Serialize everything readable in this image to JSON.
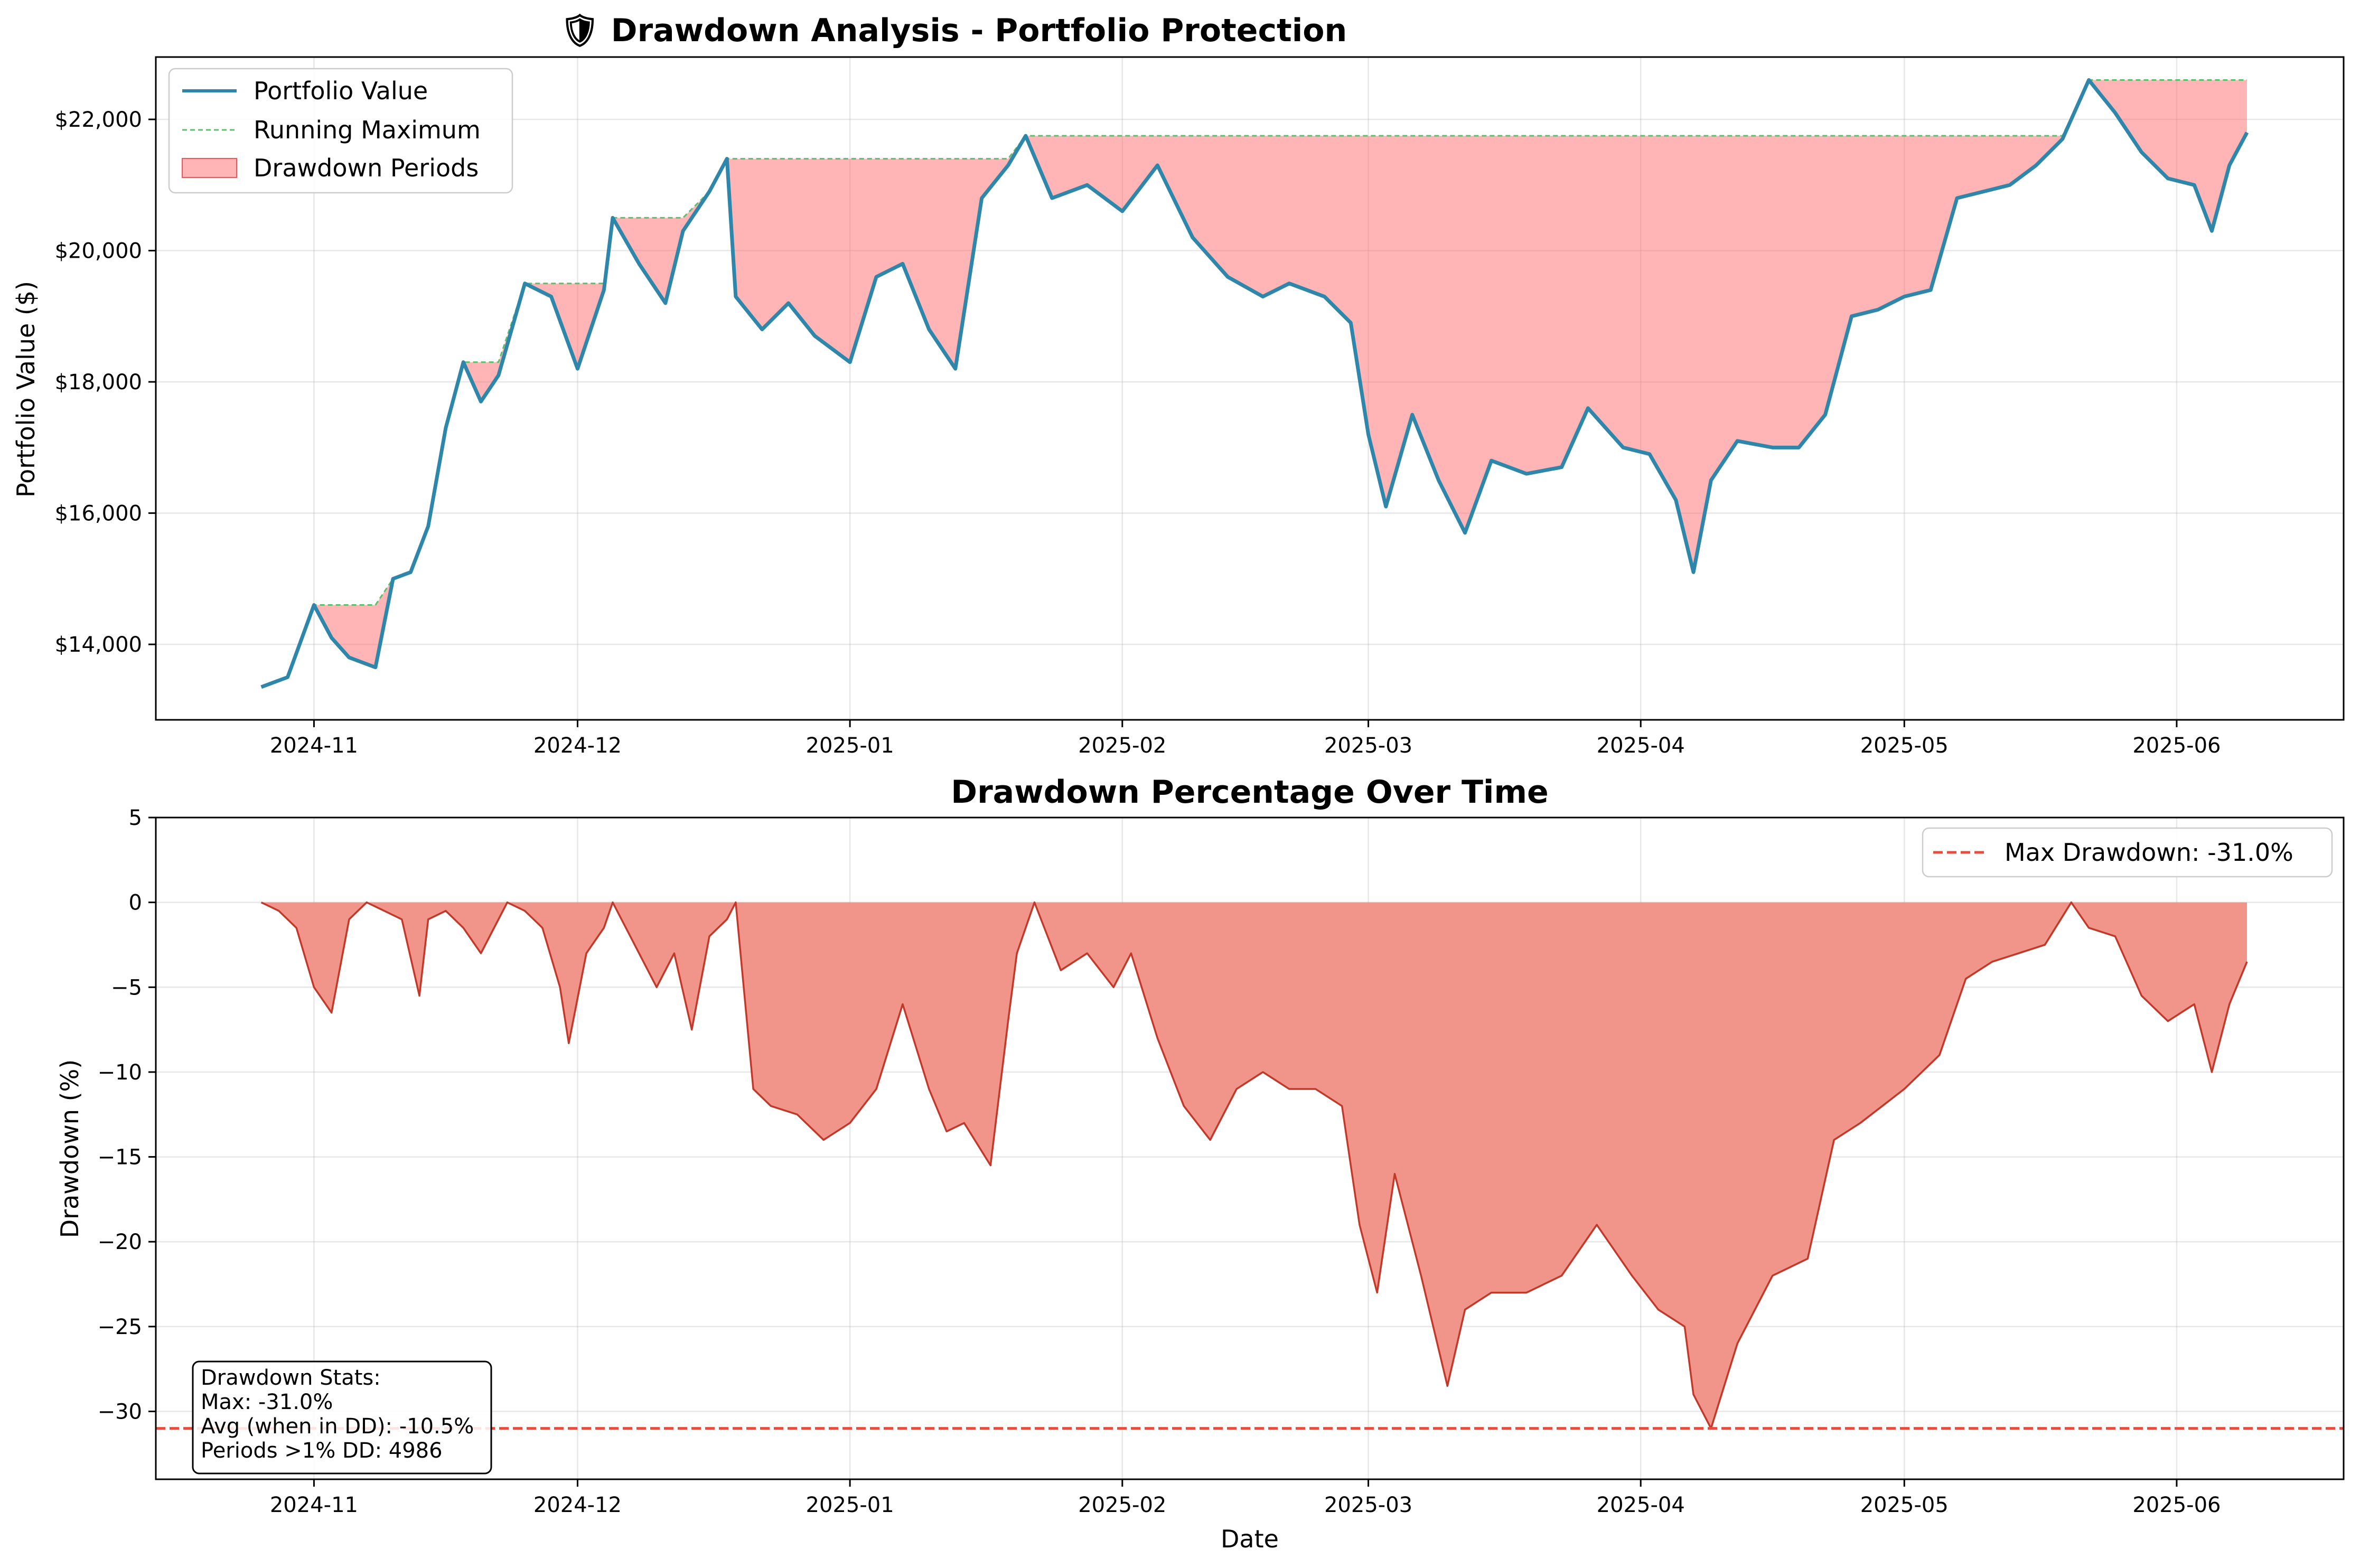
{
  "chart_data": [
    {
      "type": "line",
      "title": "🛡 Drawdown Analysis - Portfolio Protection",
      "xlabel": "",
      "ylabel": "Portfolio Value ($)",
      "x_ticks": [
        "2024-11",
        "2024-12",
        "2025-01",
        "2025-02",
        "2025-03",
        "2025-04",
        "2025-05",
        "2025-06"
      ],
      "y_ticks": [
        "$14,000",
        "$16,000",
        "$18,000",
        "$20,000",
        "$22,000"
      ],
      "y_tick_values": [
        14000,
        16000,
        18000,
        20000,
        22000
      ],
      "xlim": [
        "2024-10-14",
        "2025-06-20"
      ],
      "ylim": [
        12850,
        22950
      ],
      "grid": true,
      "legend_position": "top-left",
      "legend": [
        "Portfolio Value",
        "Running Maximum",
        "Drawdown Periods"
      ],
      "x": [
        "2024-10-26",
        "2024-10-29",
        "2024-11-01",
        "2024-11-03",
        "2024-11-05",
        "2024-11-08",
        "2024-11-10",
        "2024-11-12",
        "2024-11-14",
        "2024-11-16",
        "2024-11-18",
        "2024-11-20",
        "2024-11-22",
        "2024-11-25",
        "2024-11-28",
        "2024-12-01",
        "2024-12-04",
        "2024-12-05",
        "2024-12-08",
        "2024-12-11",
        "2024-12-13",
        "2024-12-16",
        "2024-12-18",
        "2024-12-19",
        "2024-12-22",
        "2024-12-25",
        "2024-12-28",
        "2025-01-01",
        "2025-01-04",
        "2025-01-07",
        "2025-01-10",
        "2025-01-13",
        "2025-01-16",
        "2025-01-19",
        "2025-01-21",
        "2025-01-24",
        "2025-01-28",
        "2025-02-01",
        "2025-02-05",
        "2025-02-09",
        "2025-02-13",
        "2025-02-17",
        "2025-02-20",
        "2025-02-24",
        "2025-02-27",
        "2025-03-01",
        "2025-03-03",
        "2025-03-06",
        "2025-03-09",
        "2025-03-12",
        "2025-03-15",
        "2025-03-19",
        "2025-03-23",
        "2025-03-26",
        "2025-03-30",
        "2025-04-02",
        "2025-04-05",
        "2025-04-07",
        "2025-04-09",
        "2025-04-12",
        "2025-04-16",
        "2025-04-19",
        "2025-04-22",
        "2025-04-25",
        "2025-04-28",
        "2025-05-01",
        "2025-05-04",
        "2025-05-07",
        "2025-05-10",
        "2025-05-13",
        "2025-05-16",
        "2025-05-19",
        "2025-05-22",
        "2025-05-25",
        "2025-05-28",
        "2025-05-31",
        "2025-06-03",
        "2025-06-05",
        "2025-06-07",
        "2025-06-09"
      ],
      "series": [
        {
          "name": "Portfolio Value",
          "color": "#2e86ab",
          "values": [
            13350,
            13500,
            14600,
            14100,
            13800,
            13650,
            15000,
            15100,
            15800,
            17300,
            18300,
            17700,
            18100,
            19500,
            19300,
            18200,
            19400,
            20500,
            19800,
            19200,
            20300,
            20900,
            21400,
            19300,
            18800,
            19200,
            18700,
            18300,
            19600,
            19800,
            18800,
            18200,
            20800,
            21300,
            21750,
            20800,
            21000,
            20600,
            21300,
            20200,
            19600,
            19300,
            19500,
            19300,
            18900,
            17200,
            16100,
            17500,
            16500,
            15700,
            16800,
            16600,
            16700,
            17600,
            17000,
            16900,
            16200,
            15100,
            16500,
            17100,
            17000,
            17000,
            17500,
            19000,
            19100,
            19300,
            19400,
            20800,
            20900,
            21000,
            21300,
            21700,
            22600,
            22100,
            21500,
            21100,
            21000,
            20300,
            21300,
            21800
          ]
        },
        {
          "name": "Running Maximum",
          "color": "#5cbf6f",
          "values": [
            13350,
            13500,
            14600,
            14600,
            14600,
            14600,
            15000,
            15100,
            15800,
            17300,
            18300,
            18300,
            18300,
            19500,
            19500,
            19500,
            19500,
            20500,
            20500,
            20500,
            20500,
            20900,
            21400,
            21400,
            21400,
            21400,
            21400,
            21400,
            21400,
            21400,
            21400,
            21400,
            21400,
            21400,
            21750,
            21750,
            21750,
            21750,
            21750,
            21750,
            21750,
            21750,
            21750,
            21750,
            21750,
            21750,
            21750,
            21750,
            21750,
            21750,
            21750,
            21750,
            21750,
            21750,
            21750,
            21750,
            21750,
            21750,
            21750,
            21750,
            21750,
            21750,
            21750,
            21750,
            21750,
            21750,
            21750,
            21750,
            21750,
            21750,
            21750,
            21750,
            22600,
            22600,
            22600,
            22600,
            22600,
            22600,
            22600,
            22600
          ]
        }
      ]
    },
    {
      "type": "area",
      "title": "Drawdown Percentage Over Time",
      "xlabel": "Date",
      "ylabel": "Drawdown (%)",
      "x_ticks": [
        "2024-11",
        "2024-12",
        "2025-01",
        "2025-02",
        "2025-03",
        "2025-04",
        "2025-05",
        "2025-06"
      ],
      "y_ticks": [
        "5",
        "0",
        "−5",
        "−10",
        "−15",
        "−20",
        "−25",
        "−30"
      ],
      "y_tick_values": [
        5,
        0,
        -5,
        -10,
        -15,
        -20,
        -25,
        -30
      ],
      "xlim": [
        "2024-10-14",
        "2025-06-20"
      ],
      "ylim": [
        -34,
        5
      ],
      "grid": true,
      "legend_position": "top-right",
      "legend": [
        "Max Drawdown: -31.0%"
      ],
      "x": [
        "2024-10-26",
        "2024-10-28",
        "2024-10-30",
        "2024-11-01",
        "2024-11-03",
        "2024-11-05",
        "2024-11-07",
        "2024-11-09",
        "2024-11-11",
        "2024-11-13",
        "2024-11-14",
        "2024-11-16",
        "2024-11-18",
        "2024-11-20",
        "2024-11-23",
        "2024-11-25",
        "2024-11-27",
        "2024-11-29",
        "2024-11-30",
        "2024-12-02",
        "2024-12-04",
        "2024-12-05",
        "2024-12-08",
        "2024-12-10",
        "2024-12-12",
        "2024-12-14",
        "2024-12-16",
        "2024-12-18",
        "2024-12-19",
        "2024-12-21",
        "2024-12-23",
        "2024-12-26",
        "2024-12-29",
        "2025-01-01",
        "2025-01-04",
        "2025-01-07",
        "2025-01-10",
        "2025-01-12",
        "2025-01-14",
        "2025-01-17",
        "2025-01-19",
        "2025-01-20",
        "2025-01-22",
        "2025-01-25",
        "2025-01-28",
        "2025-01-31",
        "2025-02-02",
        "2025-02-05",
        "2025-02-08",
        "2025-02-11",
        "2025-02-14",
        "2025-02-17",
        "2025-02-20",
        "2025-02-23",
        "2025-02-26",
        "2025-02-28",
        "2025-03-02",
        "2025-03-04",
        "2025-03-07",
        "2025-03-10",
        "2025-03-12",
        "2025-03-15",
        "2025-03-19",
        "2025-03-23",
        "2025-03-27",
        "2025-03-31",
        "2025-04-03",
        "2025-04-06",
        "2025-04-07",
        "2025-04-09",
        "2025-04-12",
        "2025-04-16",
        "2025-04-20",
        "2025-04-23",
        "2025-04-26",
        "2025-05-01",
        "2025-05-05",
        "2025-05-08",
        "2025-05-11",
        "2025-05-14",
        "2025-05-17",
        "2025-05-20",
        "2025-05-22",
        "2025-05-25",
        "2025-05-28",
        "2025-05-31",
        "2025-06-03",
        "2025-06-05",
        "2025-06-07",
        "2025-06-09"
      ],
      "series": [
        {
          "name": "Drawdown",
          "color": "#c0392b",
          "fill": "#f1948a",
          "values": [
            0,
            -0.5,
            -1.5,
            -5,
            -6.5,
            -1,
            0,
            -0.5,
            -1,
            -5.5,
            -1,
            -0.5,
            -1.5,
            -3,
            0,
            -0.5,
            -1.5,
            -5,
            -8.3,
            -3,
            -1.5,
            0,
            -3,
            -5,
            -3,
            -7.5,
            -2,
            -1,
            0,
            -11,
            -12,
            -12.5,
            -14,
            -13,
            -11,
            -6,
            -11,
            -13.5,
            -13,
            -15.5,
            -7,
            -3,
            0,
            -4,
            -3,
            -5,
            -3,
            -8,
            -12,
            -14,
            -11,
            -10,
            -11,
            -11,
            -12,
            -19,
            -23,
            -16,
            -22,
            -28.5,
            -24,
            -23,
            -23,
            -22,
            -19,
            -22,
            -24,
            -25,
            -29,
            -31,
            -26,
            -22,
            -21,
            -14,
            -13,
            -11,
            -9,
            -4.5,
            -3.5,
            -3,
            -2.5,
            0,
            -1.5,
            -2,
            -5.5,
            -7,
            -6,
            -10,
            -6,
            -3.5
          ]
        }
      ],
      "max_drawdown": -31.0,
      "stats_box": [
        "Drawdown Stats:",
        "Max: -31.0%",
        "Avg (when in DD): -10.5%",
        "Periods >1% DD: 4986"
      ]
    }
  ]
}
